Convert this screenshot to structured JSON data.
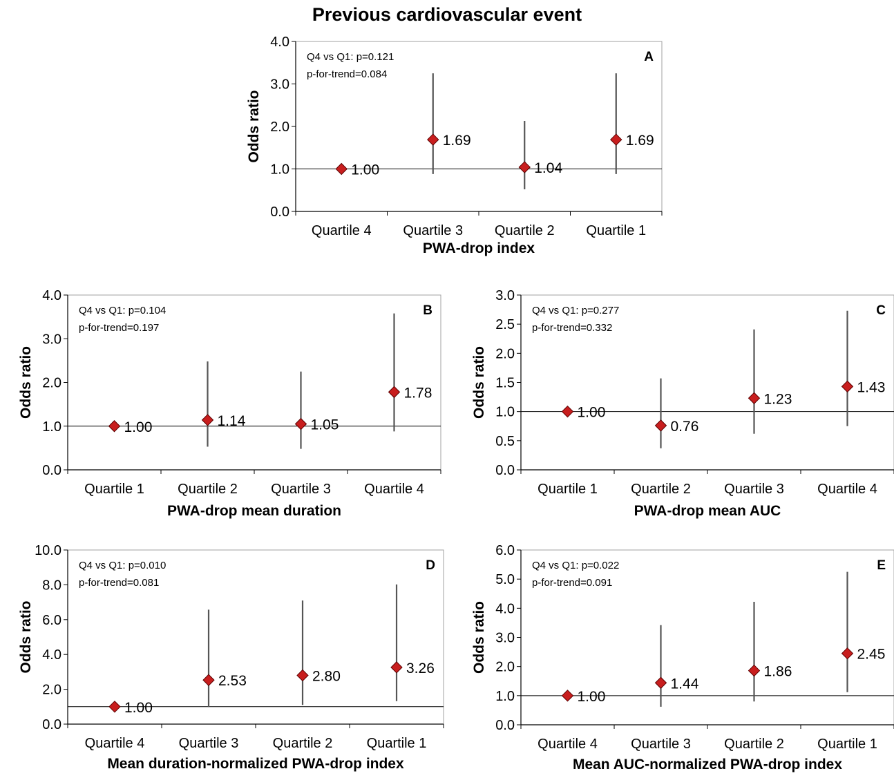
{
  "title": "Previous cardiovascular event",
  "chart_data": [
    {
      "panel": "A",
      "type": "scatter",
      "xlabel": "PWA-drop index",
      "ylabel": "Odds ratio",
      "categories": [
        "Quartile 4",
        "Quartile 3",
        "Quartile 2",
        "Quartile 1"
      ],
      "values": [
        1.0,
        1.69,
        1.04,
        1.69
      ],
      "lower": [
        1.0,
        0.88,
        0.52,
        0.88
      ],
      "upper": [
        1.0,
        3.25,
        2.13,
        3.25
      ],
      "value_labels": [
        "1.00",
        "1.69",
        "1.04",
        "1.69"
      ],
      "ylim": [
        0,
        4
      ],
      "yticks": [
        0,
        1,
        2,
        3,
        4
      ],
      "ytick_labels": [
        "0.0",
        "1.0",
        "2.0",
        "3.0",
        "4.0"
      ],
      "reference_line": 1.0,
      "annotations": [
        "Q4 vs Q1: p=0.121",
        "p-for-trend=0.084"
      ],
      "marker_color": "#c81e1e",
      "errorbar_color": "#555555"
    },
    {
      "panel": "B",
      "type": "scatter",
      "xlabel": "PWA-drop mean duration",
      "ylabel": "Odds ratio",
      "categories": [
        "Quartile 1",
        "Quartile 2",
        "Quartile 3",
        "Quartile 4"
      ],
      "values": [
        1.0,
        1.14,
        1.05,
        1.78
      ],
      "lower": [
        1.0,
        0.53,
        0.48,
        0.88
      ],
      "upper": [
        1.0,
        2.48,
        2.25,
        3.58
      ],
      "value_labels": [
        "1.00",
        "1.14",
        "1.05",
        "1.78"
      ],
      "ylim": [
        0,
        4
      ],
      "yticks": [
        0,
        1,
        2,
        3,
        4
      ],
      "ytick_labels": [
        "0.0",
        "1.0",
        "2.0",
        "3.0",
        "4.0"
      ],
      "reference_line": 1.0,
      "annotations": [
        "Q4 vs Q1: p=0.104",
        "p-for-trend=0.197"
      ],
      "marker_color": "#c81e1e",
      "errorbar_color": "#555555"
    },
    {
      "panel": "C",
      "type": "scatter",
      "xlabel": "PWA-drop mean AUC",
      "ylabel": "Odds ratio",
      "categories": [
        "Quartile 1",
        "Quartile 2",
        "Quartile 3",
        "Quartile 4"
      ],
      "values": [
        1.0,
        0.76,
        1.23,
        1.43
      ],
      "lower": [
        1.0,
        0.37,
        0.62,
        0.75
      ],
      "upper": [
        1.0,
        1.57,
        2.41,
        2.73
      ],
      "value_labels": [
        "1.00",
        "0.76",
        "1.23",
        "1.43"
      ],
      "ylim": [
        0,
        3
      ],
      "yticks": [
        0,
        0.5,
        1,
        1.5,
        2,
        2.5,
        3
      ],
      "ytick_labels": [
        "0.0",
        "0.5",
        "1.0",
        "1.5",
        "2.0",
        "2.5",
        "3.0"
      ],
      "reference_line": 1.0,
      "annotations": [
        "Q4 vs Q1: p=0.277",
        "p-for-trend=0.332"
      ],
      "marker_color": "#c81e1e",
      "errorbar_color": "#555555"
    },
    {
      "panel": "D",
      "type": "scatter",
      "xlabel": "Mean duration-normalized PWA-drop index",
      "ylabel": "Odds ratio",
      "categories": [
        "Quartile 4",
        "Quartile 3",
        "Quartile 2",
        "Quartile 1"
      ],
      "values": [
        1.0,
        2.53,
        2.8,
        3.26
      ],
      "lower": [
        1.0,
        0.98,
        1.1,
        1.32
      ],
      "upper": [
        1.0,
        6.57,
        7.1,
        8.02
      ],
      "value_labels": [
        "1.00",
        "2.53",
        "2.80",
        "3.26"
      ],
      "ylim": [
        0,
        10
      ],
      "yticks": [
        0,
        2,
        4,
        6,
        8,
        10
      ],
      "ytick_labels": [
        "0.0",
        "2.0",
        "4.0",
        "6.0",
        "8.0",
        "10.0"
      ],
      "reference_line": 1.0,
      "annotations": [
        "Q4 vs Q1: p=0.010",
        "p-for-trend=0.081"
      ],
      "marker_color": "#c81e1e",
      "errorbar_color": "#555555"
    },
    {
      "panel": "E",
      "type": "scatter",
      "xlabel": "Mean AUC-normalized PWA-drop index",
      "ylabel": "Odds ratio",
      "categories": [
        "Quartile 4",
        "Quartile 3",
        "Quartile 2",
        "Quartile 1"
      ],
      "values": [
        1.0,
        1.44,
        1.86,
        2.45
      ],
      "lower": [
        1.0,
        0.62,
        0.8,
        1.12
      ],
      "upper": [
        1.0,
        3.42,
        4.22,
        5.25
      ],
      "value_labels": [
        "1.00",
        "1.44",
        "1.86",
        "2.45"
      ],
      "ylim": [
        0,
        6
      ],
      "yticks": [
        0,
        1,
        2,
        3,
        4,
        5,
        6
      ],
      "ytick_labels": [
        "0.0",
        "1.0",
        "2.0",
        "3.0",
        "4.0",
        "5.0",
        "6.0"
      ],
      "reference_line": 1.0,
      "annotations": [
        "Q4 vs Q1: p=0.022",
        "p-for-trend=0.091"
      ],
      "marker_color": "#c81e1e",
      "errorbar_color": "#555555"
    }
  ]
}
